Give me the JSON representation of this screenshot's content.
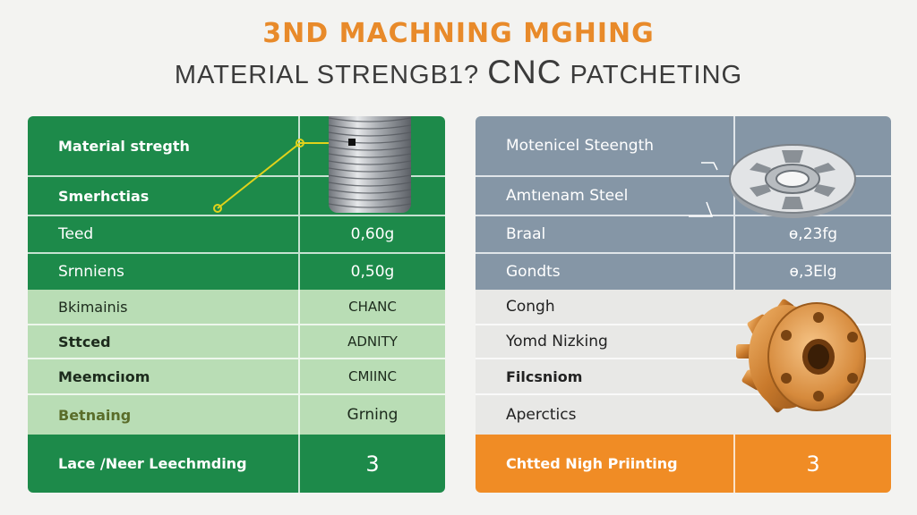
{
  "header": {
    "title_line1": "3ND MACHNING MGHING",
    "title_line2_a": "MATERIAL STRENGB1?",
    "title_line2_b": "CNC",
    "title_line2_c": "PATCHETING"
  },
  "left_panel": {
    "rows": [
      {
        "label": "Material stregth",
        "value": ""
      },
      {
        "label": "Smerhctias",
        "value": ""
      },
      {
        "label": "Teed",
        "value": "0,60g"
      },
      {
        "label": "Srnniens",
        "value": "0,50g"
      },
      {
        "label": "Bkimainis",
        "value": "CHANC"
      },
      {
        "label": "Sttced",
        "value": "ADNITY"
      },
      {
        "label": "Meemciıom",
        "value": "CMIINC"
      },
      {
        "label": "Betnaing",
        "value": "Grning"
      }
    ],
    "footer": {
      "label": "Lace /Neer Leechmding",
      "value": "3"
    },
    "colors": {
      "dark": "#1d8a4a",
      "light": "#b9ddb5"
    },
    "illustration": "metal-coil-spring-icon"
  },
  "right_panel": {
    "rows": [
      {
        "label": "Motenicel Steength",
        "value": ""
      },
      {
        "label": "Amtıenam Steel",
        "value": ""
      },
      {
        "label": "Braal",
        "value": "ɵ,23fg"
      },
      {
        "label": "Gondts",
        "value": "ɵ,3Elg"
      },
      {
        "label": "Congh",
        "value": ""
      },
      {
        "label": "Yomd Nizking",
        "value": ""
      },
      {
        "label": "Filcsniom",
        "value": ""
      },
      {
        "label": "Aperctics",
        "value": ""
      }
    ],
    "footer": {
      "label": "Chtted Nigh Priinting",
      "value": "3"
    },
    "colors": {
      "dark": "#8596a6",
      "light": "#e8e8e6",
      "accent": "#f08c25"
    },
    "illustrations": [
      "metal-flange-disc-icon",
      "bronze-gear-icon"
    ]
  }
}
